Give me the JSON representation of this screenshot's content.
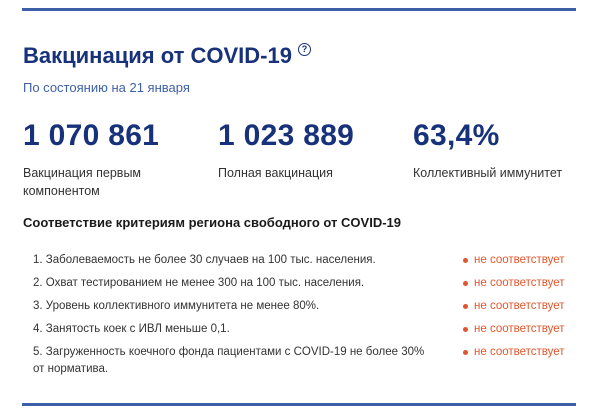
{
  "header": {
    "title": "Вакцинация от COVID-19",
    "help_icon": "?",
    "subtitle": "По состоянию на 21 января"
  },
  "stats": [
    {
      "value": "1 070 861",
      "label": "Вакцинация первым компонентом"
    },
    {
      "value": "1 023 889",
      "label": "Полная вакцинация"
    },
    {
      "value": "63,4%",
      "label": "Коллективный иммунитет"
    }
  ],
  "criteria": {
    "title": "Соответствие критериям региона свободного от COVID-19",
    "items": [
      {
        "text": "1. Заболеваемость не более 30 случаев на 100 тыс. населения.",
        "status": "не соответствует"
      },
      {
        "text": "2. Охват тестированием не менее 300 на 100 тыс. населения.",
        "status": "не соответствует"
      },
      {
        "text": "3. Уровень коллективного иммунитета не менее 80%.",
        "status": "не соответствует"
      },
      {
        "text": "4. Занятость коек с ИВЛ меньше 0,1.",
        "status": "не соответствует"
      },
      {
        "text": "5. Загруженность коечного фонда пациентами с COVID-19 не более 30% от норматива.",
        "status": "не соответствует"
      }
    ],
    "status_color": "#e0562c"
  },
  "colors": {
    "accent": "#17327a",
    "rule": "#3d5fa8"
  }
}
